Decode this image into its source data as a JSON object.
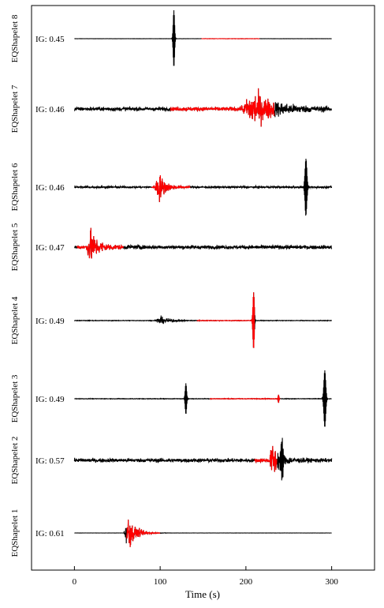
{
  "chart_data": {
    "type": "line",
    "xlabel": "Time (s)",
    "xlim": [
      -50,
      350
    ],
    "xticks": [
      0,
      100,
      200,
      300
    ],
    "trace_range": [
      0,
      300
    ],
    "colors": {
      "trace": "#000000",
      "shapelet": "#ff0000",
      "axis": "#000000"
    },
    "series": [
      {
        "name": "EQShapelet 8",
        "ig_label": "IG: 0.45",
        "shapelet_start": 148,
        "shapelet_end": 216,
        "noise": "none",
        "events": [
          {
            "t": 116,
            "amp": 1.0,
            "kind": "spike",
            "width": 3
          }
        ]
      },
      {
        "name": "EQShapelet 7",
        "ig_label": "IG: 0.46",
        "shapelet_start": 112,
        "shapelet_end": 233,
        "noise": "high",
        "events": [
          {
            "t": 210,
            "amp": 1.0,
            "kind": "burst",
            "width": 30
          }
        ]
      },
      {
        "name": "EQShapelet 6",
        "ig_label": "IG: 0.46",
        "shapelet_start": 90,
        "shapelet_end": 135,
        "noise": "medium",
        "events": [
          {
            "t": 98,
            "amp": 1.0,
            "kind": "burst",
            "width": 8
          },
          {
            "t": 270,
            "amp": 1.0,
            "kind": "spike",
            "width": 4
          }
        ]
      },
      {
        "name": "EQShapelet 5",
        "ig_label": "IG: 0.47",
        "shapelet_start": 3,
        "shapelet_end": 57,
        "noise": "high",
        "events": [
          {
            "t": 19,
            "amp": 1.0,
            "kind": "burst",
            "width": 10
          }
        ]
      },
      {
        "name": "EQShapelet 4",
        "ig_label": "IG: 0.49",
        "shapelet_start": 143,
        "shapelet_end": 210,
        "noise": "low",
        "events": [
          {
            "t": 100,
            "amp": 0.25,
            "kind": "burst",
            "width": 12
          },
          {
            "t": 209,
            "amp": 1.0,
            "kind": "spike",
            "width": 3
          }
        ]
      },
      {
        "name": "EQShapelet 3",
        "ig_label": "IG: 0.49",
        "shapelet_start": 158,
        "shapelet_end": 240,
        "noise": "low",
        "events": [
          {
            "t": 130,
            "amp": 0.55,
            "kind": "spike",
            "width": 3
          },
          {
            "t": 238,
            "amp": 0.15,
            "kind": "spike",
            "width": 2
          },
          {
            "t": 292,
            "amp": 1.0,
            "kind": "spike",
            "width": 4
          }
        ]
      },
      {
        "name": "EQShapelet 2",
        "ig_label": "IG: 0.57",
        "shapelet_start": 210,
        "shapelet_end": 236,
        "noise": "high",
        "events": [
          {
            "t": 232,
            "amp": 1.0,
            "kind": "burst",
            "width": 10
          },
          {
            "t": 242,
            "amp": 0.7,
            "kind": "spike",
            "width": 4
          }
        ]
      },
      {
        "name": "EQShapelet 1",
        "ig_label": "IG: 0.61",
        "shapelet_start": 61,
        "shapelet_end": 100,
        "noise": "none",
        "events": [
          {
            "t": 63,
            "amp": 1.0,
            "kind": "burst",
            "width": 10
          }
        ]
      }
    ]
  }
}
